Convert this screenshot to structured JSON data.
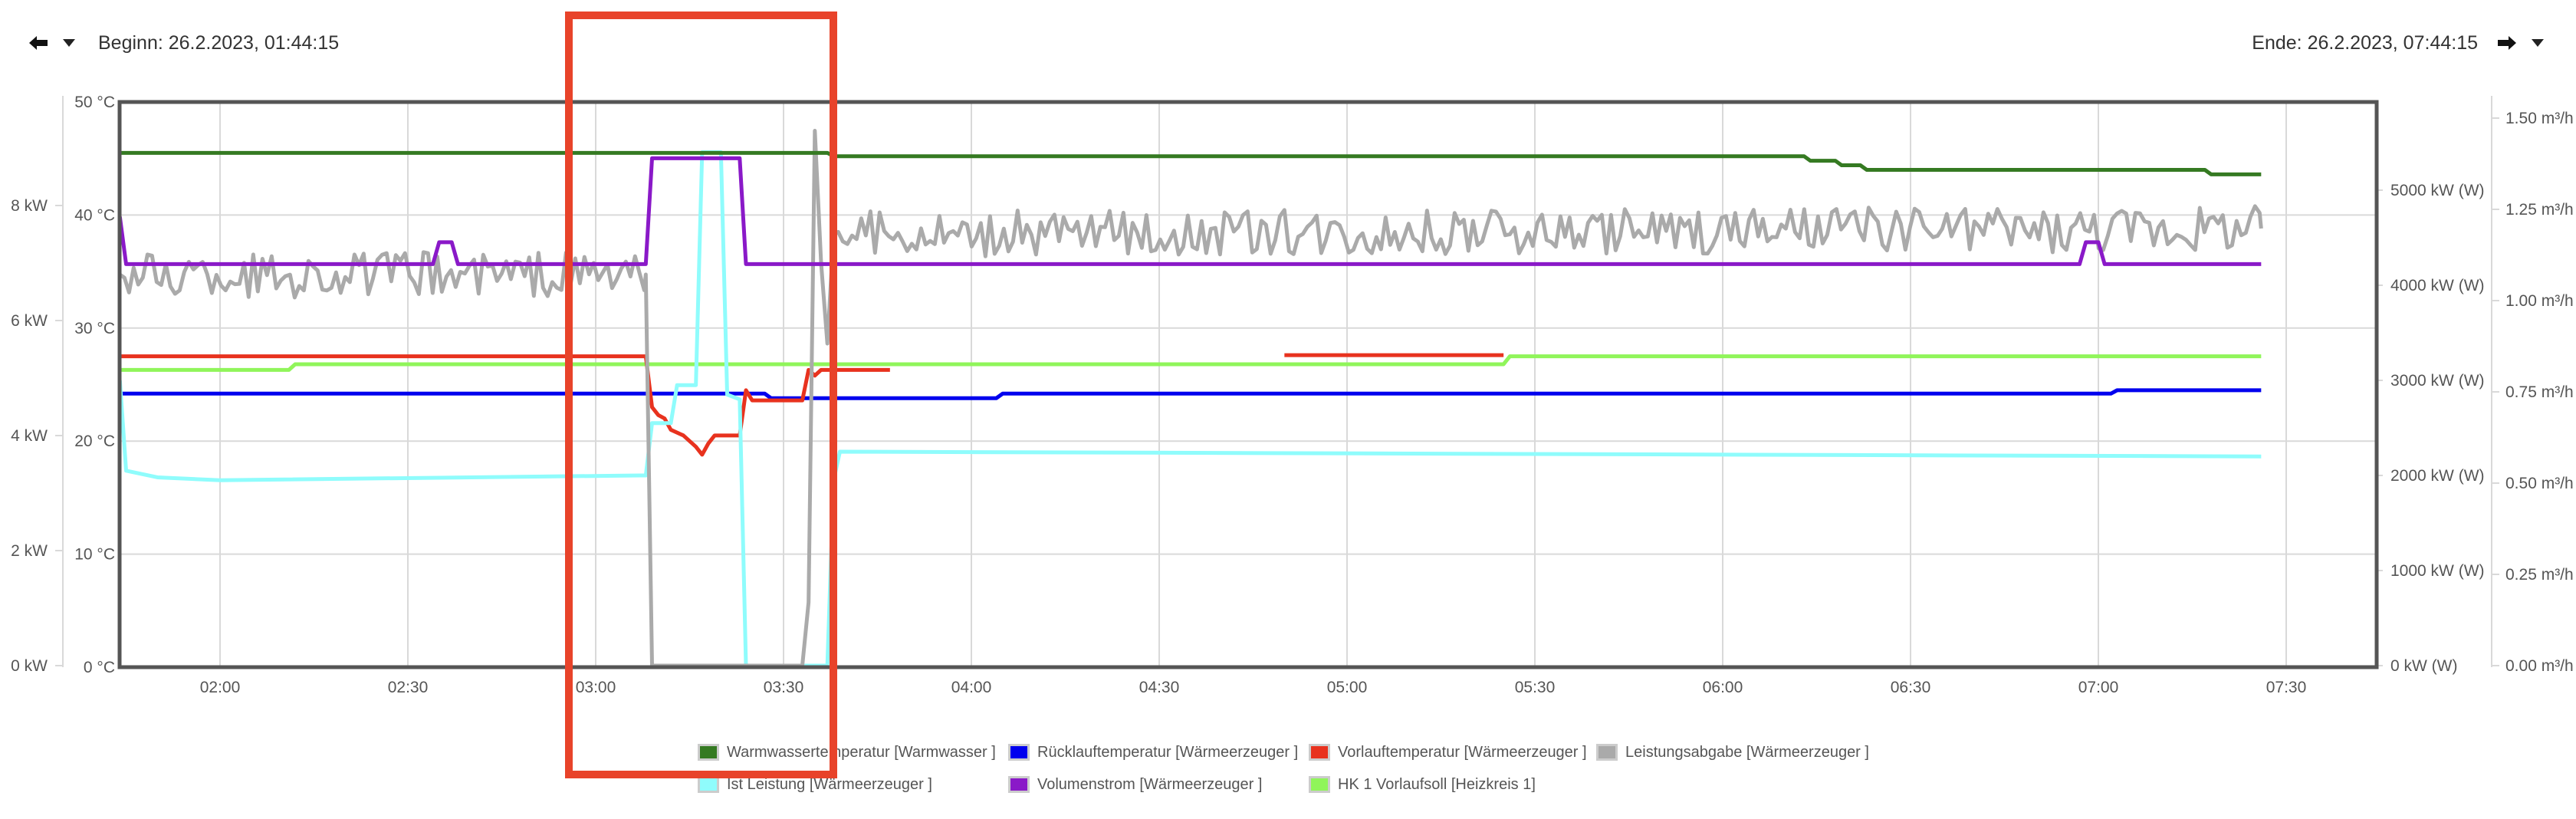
{
  "header": {
    "begin_label": "Beginn: 26.2.2023, 01:44:15",
    "end_label": "Ende: 26.2.2023, 07:44:15",
    "prev_icon": "arrow-left-icon",
    "next_icon": "arrow-right-icon",
    "dropdown_icon": "caret-down-icon"
  },
  "axes": {
    "left_outer": [
      "0 kW",
      "2 kW",
      "4 kW",
      "6 kW",
      "8 kW"
    ],
    "left_inner": [
      "0 °C",
      "10 °C",
      "20 °C",
      "30 °C",
      "40 °C",
      "50 °C"
    ],
    "right_inner": [
      "0 kW (W)",
      "1000 kW (W)",
      "2000 kW (W)",
      "3000 kW (W)",
      "4000 kW (W)",
      "5000 kW (W)"
    ],
    "right_outer": [
      "0.00 m³/h",
      "0.25 m³/h",
      "0.50 m³/h",
      "0.75 m³/h",
      "1.00 m³/h",
      "1.25 m³/h",
      "1.50 m³/h"
    ],
    "x_ticks": [
      "02:00",
      "02:30",
      "03:00",
      "03:30",
      "04:00",
      "04:30",
      "05:00",
      "05:30",
      "06:00",
      "06:30",
      "07:00",
      "07:30"
    ]
  },
  "legend": [
    {
      "label": "Warmwassertemperatur [Warmwasser ]",
      "color": "#357a22"
    },
    {
      "label": "Rücklauftemperatur [Wärmeerzeuger ]",
      "color": "#0000ee"
    },
    {
      "label": "Vorlauftemperatur [Wärmeerzeuger ]",
      "color": "#e8321e"
    },
    {
      "label": "Leistungsabgabe [Wärmeerzeuger ]",
      "color": "#aaaaaa"
    },
    {
      "label": "Ist Leistung [Wärmeerzeuger ]",
      "color": "#8ffcfc"
    },
    {
      "label": "Volumenstrom [Wärmeerzeuger ]",
      "color": "#8a19c8"
    },
    {
      "label": "HK 1 Vorlaufsoll [Heizkreis 1]",
      "color": "#90f55a"
    }
  ],
  "chart_data": {
    "type": "line",
    "title": "",
    "xlabel": "",
    "x_range": [
      "01:44:15",
      "07:44:15"
    ],
    "grid": true,
    "legend_position": "bottom",
    "axes": {
      "temperature": {
        "unit": "°C",
        "ylim": [
          0,
          50
        ]
      },
      "power_kw": {
        "unit": "kW",
        "ylim": [
          0,
          10
        ]
      },
      "power_w": {
        "unit": "kW (W)",
        "ylim": [
          0,
          6000
        ]
      },
      "flow": {
        "unit": "m³/h",
        "ylim": [
          0,
          1.56
        ]
      }
    },
    "series": [
      {
        "name": "Warmwassertemperatur [Warmwasser ]",
        "axis": "temperature",
        "color": "#357a22",
        "points": [
          [
            "01:44",
            45.5
          ],
          [
            "03:37",
            45.5
          ],
          [
            "03:38",
            45.2
          ],
          [
            "06:13",
            45.2
          ],
          [
            "06:14",
            44.8
          ],
          [
            "06:18",
            44.8
          ],
          [
            "06:19",
            44.4
          ],
          [
            "06:22",
            44.4
          ],
          [
            "06:23",
            44.0
          ],
          [
            "07:17",
            44.0
          ],
          [
            "07:18",
            43.6
          ],
          [
            "07:26",
            43.6
          ]
        ]
      },
      {
        "name": "Rücklauftemperatur [Wärmeerzeuger ]",
        "axis": "temperature",
        "color": "#0000ee",
        "points": [
          [
            "01:44",
            24.2
          ],
          [
            "03:27",
            24.2
          ],
          [
            "03:28",
            23.8
          ],
          [
            "04:04",
            23.8
          ],
          [
            "04:05",
            24.2
          ],
          [
            "07:02",
            24.2
          ],
          [
            "07:03",
            24.5
          ],
          [
            "07:26",
            24.5
          ]
        ]
      },
      {
        "name": "Vorlauftemperatur [Wärmeerzeuger ]",
        "axis": "temperature",
        "color": "#e8321e",
        "points": [
          [
            "01:44",
            27.5
          ],
          [
            "03:08",
            27.5
          ],
          [
            "03:09",
            23.0
          ],
          [
            "03:10",
            22.3
          ],
          [
            "03:11",
            22.0
          ],
          [
            "03:12",
            21.0
          ],
          [
            "03:14",
            20.5
          ],
          [
            "03:16",
            19.5
          ],
          [
            "03:17",
            18.8
          ],
          [
            "03:18",
            19.8
          ],
          [
            "03:19",
            20.5
          ],
          [
            "03:23",
            20.5
          ],
          [
            "03:24",
            24.5
          ],
          [
            "03:25",
            23.6
          ],
          [
            "03:33",
            23.6
          ],
          [
            "03:34",
            26.3
          ],
          [
            "03:35",
            25.8
          ],
          [
            "03:36",
            26.3
          ],
          [
            "03:47",
            26.3
          ]
        ],
        "segment2": [
          [
            "04:50",
            27.6
          ],
          [
            "05:25",
            27.6
          ]
        ]
      },
      {
        "name": "Leistungsabgabe [Wärmeerzeuger ]",
        "axis": "power_kw",
        "color": "#aaaaaa",
        "points": [
          [
            "01:44",
            6.8
          ],
          [
            "03:08",
            6.8
          ],
          [
            "03:09",
            0
          ],
          [
            "03:33",
            0
          ],
          [
            "03:34",
            1.1
          ],
          [
            "03:35",
            9.3
          ],
          [
            "03:36",
            7.0
          ],
          [
            "03:37",
            5.6
          ],
          [
            "03:38",
            7.5
          ],
          [
            "07:26",
            7.6
          ]
        ],
        "note": "fluctuates ±0.4 kW around baseline"
      },
      {
        "name": "Ist Leistung [Wärmeerzeuger ]",
        "axis": "power_w",
        "color": "#8ffcfc",
        "points": [
          [
            "01:44",
            3000
          ],
          [
            "01:45",
            2050
          ],
          [
            "01:50",
            1980
          ],
          [
            "02:00",
            1950
          ],
          [
            "03:07",
            2000
          ],
          [
            "03:08",
            2000
          ],
          [
            "03:09",
            2550
          ],
          [
            "03:12",
            2550
          ],
          [
            "03:13",
            2950
          ],
          [
            "03:16",
            2950
          ],
          [
            "03:17",
            5400
          ],
          [
            "03:20",
            5400
          ],
          [
            "03:21",
            2850
          ],
          [
            "03:23",
            2800
          ],
          [
            "03:24",
            0
          ],
          [
            "03:37",
            0
          ],
          [
            "03:38",
            1950
          ],
          [
            "03:39",
            2250
          ],
          [
            "07:26",
            2200
          ]
        ]
      },
      {
        "name": "Volumenstrom [Wärmeerzeuger ]",
        "axis": "flow",
        "color": "#8a19c8",
        "points": [
          [
            "01:44",
            1.23
          ],
          [
            "01:45",
            1.1
          ],
          [
            "02:34",
            1.1
          ],
          [
            "02:35",
            1.16
          ],
          [
            "02:37",
            1.16
          ],
          [
            "02:38",
            1.1
          ],
          [
            "03:08",
            1.1
          ],
          [
            "03:09",
            1.39
          ],
          [
            "03:23",
            1.39
          ],
          [
            "03:24",
            1.1
          ],
          [
            "06:57",
            1.1
          ],
          [
            "06:58",
            1.16
          ],
          [
            "07:00",
            1.16
          ],
          [
            "07:01",
            1.1
          ],
          [
            "07:26",
            1.1
          ]
        ]
      },
      {
        "name": "HK 1 Vorlaufsoll [Heizkreis 1]",
        "axis": "temperature",
        "color": "#90f55a",
        "points": [
          [
            "01:44",
            26.3
          ],
          [
            "02:11",
            26.3
          ],
          [
            "02:12",
            26.8
          ],
          [
            "05:25",
            26.8
          ],
          [
            "05:26",
            27.5
          ],
          [
            "07:26",
            27.5
          ]
        ]
      }
    ]
  },
  "annotation": {
    "type": "highlight-rectangle",
    "color": "#e8432a",
    "covers": "03:00–03:37"
  }
}
